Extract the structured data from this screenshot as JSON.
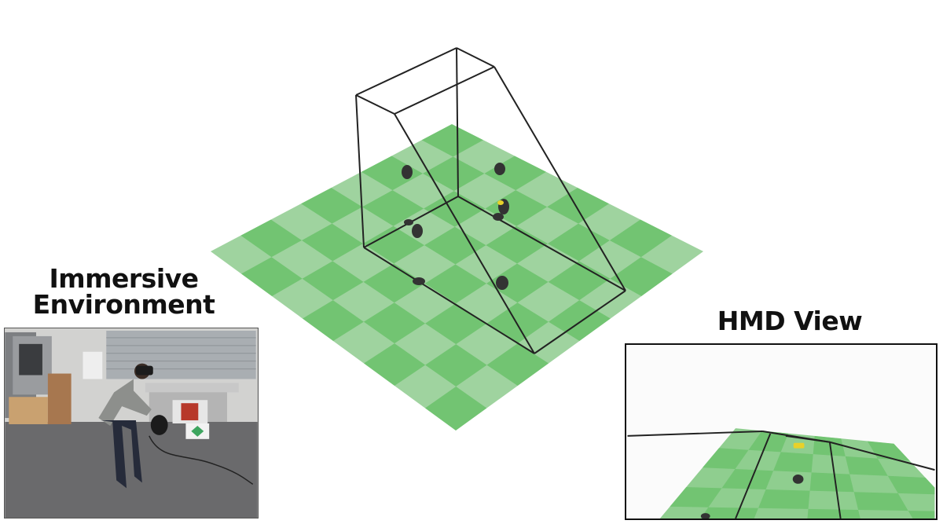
{
  "captions": {
    "immersive_line1": "Immersive",
    "immersive_line2": "Environment",
    "hmd": "HMD View"
  },
  "colors": {
    "floor_light": "#9fd39f",
    "floor_dark": "#72c472",
    "wireframe": "#222222",
    "marker": "#333333",
    "highlight": "#e8d12a"
  },
  "floor_grid": 8
}
